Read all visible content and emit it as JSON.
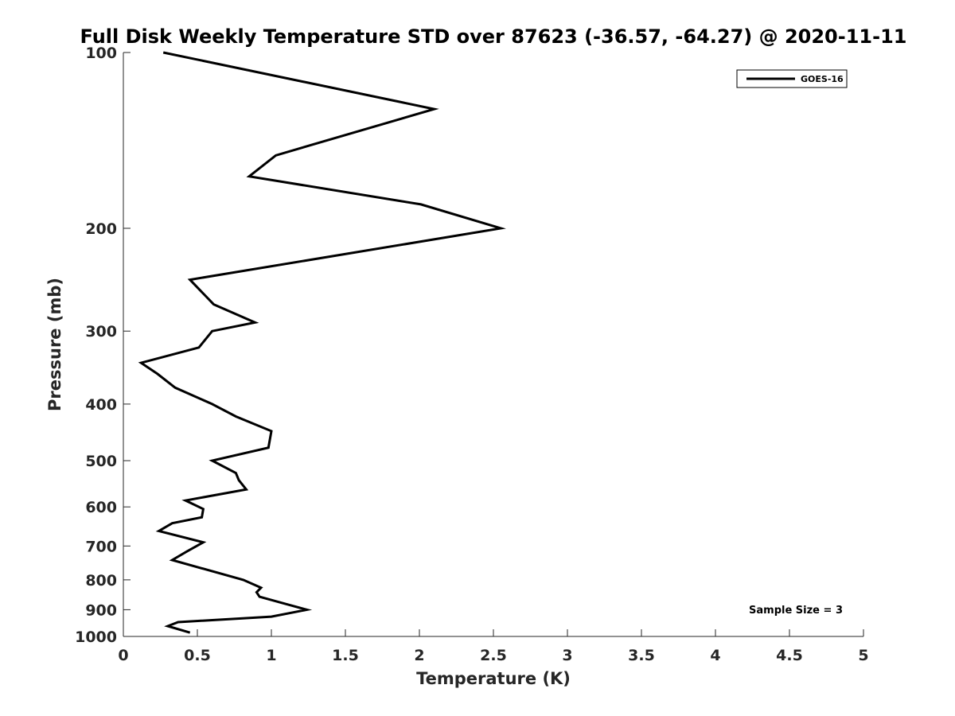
{
  "chart_data": {
    "type": "line",
    "title": "Full Disk Weekly Temperature STD over 87623 (-36.57, -64.27) @ 2020-11-11",
    "xlabel": "Temperature (K)",
    "ylabel": "Pressure (mb)",
    "xlim": [
      0,
      5
    ],
    "ylim": [
      100,
      1000
    ],
    "yscale": "log",
    "y_reversed": true,
    "xticks": [
      "0",
      "0.5",
      "1",
      "1.5",
      "2",
      "2.5",
      "3",
      "3.5",
      "4",
      "4.5",
      "5"
    ],
    "yticks": [
      "100",
      "200",
      "300",
      "400",
      "500",
      "600",
      "700",
      "800",
      "900",
      "1000"
    ],
    "grid": false,
    "legend": {
      "position": "top-right",
      "entries": [
        "GOES-16"
      ]
    },
    "annotation": "Sample Size = 3",
    "series": [
      {
        "name": "GOES-16",
        "color": "#000000",
        "points": [
          {
            "x": 0.27,
            "y": 100
          },
          {
            "x": 2.1,
            "y": 125
          },
          {
            "x": 1.03,
            "y": 150
          },
          {
            "x": 0.85,
            "y": 163
          },
          {
            "x": 2.01,
            "y": 182
          },
          {
            "x": 2.55,
            "y": 200
          },
          {
            "x": 0.45,
            "y": 245
          },
          {
            "x": 0.61,
            "y": 270
          },
          {
            "x": 0.89,
            "y": 290
          },
          {
            "x": 0.6,
            "y": 300
          },
          {
            "x": 0.51,
            "y": 320
          },
          {
            "x": 0.12,
            "y": 340
          },
          {
            "x": 0.23,
            "y": 355
          },
          {
            "x": 0.35,
            "y": 375
          },
          {
            "x": 0.6,
            "y": 400
          },
          {
            "x": 0.76,
            "y": 420
          },
          {
            "x": 1.0,
            "y": 445
          },
          {
            "x": 0.98,
            "y": 475
          },
          {
            "x": 0.6,
            "y": 500
          },
          {
            "x": 0.76,
            "y": 525
          },
          {
            "x": 0.78,
            "y": 540
          },
          {
            "x": 0.83,
            "y": 560
          },
          {
            "x": 0.42,
            "y": 585
          },
          {
            "x": 0.54,
            "y": 605
          },
          {
            "x": 0.53,
            "y": 625
          },
          {
            "x": 0.33,
            "y": 640
          },
          {
            "x": 0.24,
            "y": 660
          },
          {
            "x": 0.54,
            "y": 690
          },
          {
            "x": 0.43,
            "y": 715
          },
          {
            "x": 0.33,
            "y": 740
          },
          {
            "x": 0.81,
            "y": 800
          },
          {
            "x": 0.93,
            "y": 825
          },
          {
            "x": 0.9,
            "y": 840
          },
          {
            "x": 0.92,
            "y": 855
          },
          {
            "x": 1.1,
            "y": 880
          },
          {
            "x": 1.24,
            "y": 900
          },
          {
            "x": 1.0,
            "y": 925
          },
          {
            "x": 0.37,
            "y": 945
          },
          {
            "x": 0.3,
            "y": 960
          },
          {
            "x": 0.45,
            "y": 985
          }
        ]
      }
    ]
  }
}
